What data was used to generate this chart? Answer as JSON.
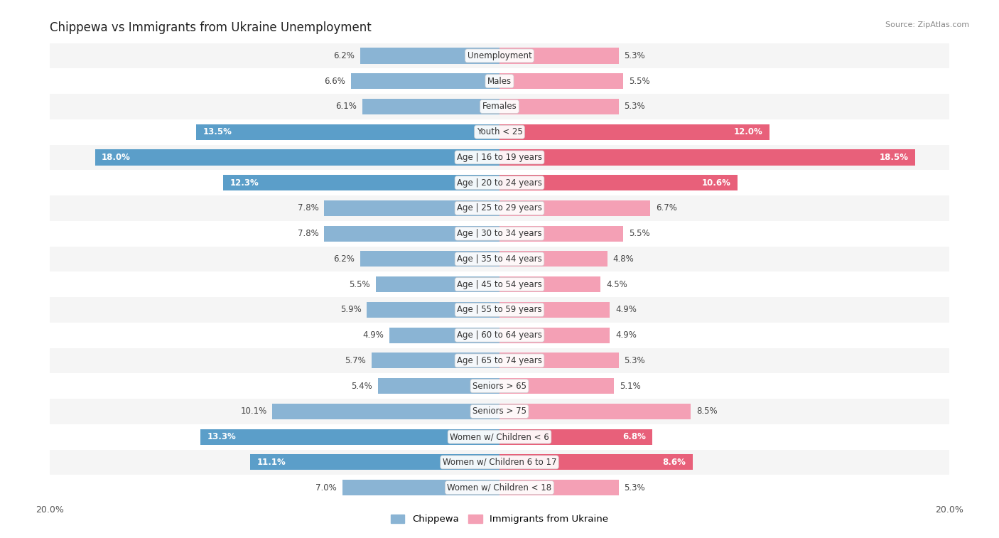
{
  "title": "Chippewa vs Immigrants from Ukraine Unemployment",
  "source": "Source: ZipAtlas.com",
  "categories": [
    "Unemployment",
    "Males",
    "Females",
    "Youth < 25",
    "Age | 16 to 19 years",
    "Age | 20 to 24 years",
    "Age | 25 to 29 years",
    "Age | 30 to 34 years",
    "Age | 35 to 44 years",
    "Age | 45 to 54 years",
    "Age | 55 to 59 years",
    "Age | 60 to 64 years",
    "Age | 65 to 74 years",
    "Seniors > 65",
    "Seniors > 75",
    "Women w/ Children < 6",
    "Women w/ Children 6 to 17",
    "Women w/ Children < 18"
  ],
  "chippewa": [
    6.2,
    6.6,
    6.1,
    13.5,
    18.0,
    12.3,
    7.8,
    7.8,
    6.2,
    5.5,
    5.9,
    4.9,
    5.7,
    5.4,
    10.1,
    13.3,
    11.1,
    7.0
  ],
  "ukraine": [
    5.3,
    5.5,
    5.3,
    12.0,
    18.5,
    10.6,
    6.7,
    5.5,
    4.8,
    4.5,
    4.9,
    4.9,
    5.3,
    5.1,
    8.5,
    6.8,
    8.6,
    5.3
  ],
  "chippewa_color": "#8ab4d4",
  "ukraine_color": "#f4a0b5",
  "highlight_chippewa_color": "#5b9ec9",
  "highlight_ukraine_color": "#e8607a",
  "highlight_rows": [
    3,
    4,
    5,
    15,
    16
  ],
  "medium_highlight_rows": [
    14
  ],
  "xlim": 20.0,
  "bar_height": 0.62,
  "bg_colors": [
    "#f5f5f5",
    "#ffffff"
  ],
  "label_fontsize": 8.5,
  "category_fontsize": 8.5,
  "title_fontsize": 12,
  "inside_label_threshold": 9.5,
  "legend_label_chippewa": "Chippewa",
  "legend_label_ukraine": "Immigrants from Ukraine"
}
